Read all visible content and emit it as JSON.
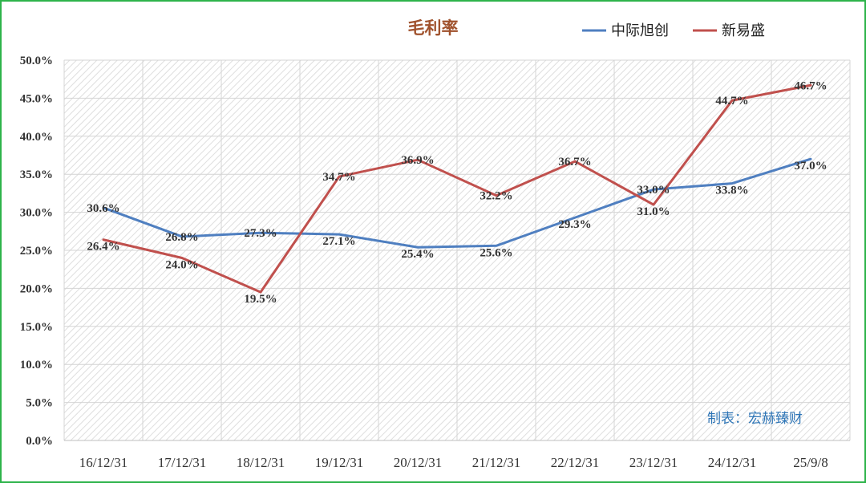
{
  "chart_data": {
    "type": "line",
    "title": "毛利率",
    "categories": [
      "16/12/31",
      "17/12/31",
      "18/12/31",
      "19/12/31",
      "20/12/31",
      "21/12/31",
      "22/12/31",
      "23/12/31",
      "24/12/31",
      "25/9/8"
    ],
    "y_ticks": [
      "0.0%",
      "5.0%",
      "10.0%",
      "15.0%",
      "20.0%",
      "25.0%",
      "30.0%",
      "35.0%",
      "40.0%",
      "45.0%",
      "50.0%"
    ],
    "ylim": [
      0,
      50
    ],
    "grid": true,
    "legend_position": "top-right",
    "series": [
      {
        "name": "中际旭创",
        "color": "#4f7fc0",
        "values": [
          30.6,
          26.8,
          27.3,
          27.1,
          25.4,
          25.6,
          29.3,
          33.0,
          33.8,
          37.0
        ],
        "labels": [
          "30.6%",
          "26.8%",
          "27.3%",
          "27.1%",
          "25.4%",
          "25.6%",
          "29.3%",
          "33.0%",
          "33.8%",
          "37.0%"
        ]
      },
      {
        "name": "新易盛",
        "color": "#c0504d",
        "values": [
          26.4,
          24.0,
          19.5,
          34.7,
          36.9,
          32.2,
          36.7,
          31.0,
          44.7,
          46.7
        ],
        "labels": [
          "26.4%",
          "24.0%",
          "19.5%",
          "34.7%",
          "36.9%",
          "32.2%",
          "36.7%",
          "31.0%",
          "44.7%",
          "46.7%"
        ]
      }
    ]
  },
  "colors": {
    "title": "#a0522d",
    "credit": "#2e75b6",
    "frame": "#2db34a"
  },
  "credit": "制表：宏赫臻财"
}
